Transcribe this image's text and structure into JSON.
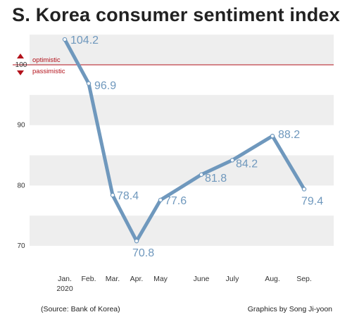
{
  "chart_data": {
    "type": "line",
    "title": "S. Korea consumer sentiment index",
    "categories": [
      "Jan.\n2020",
      "Feb.",
      "Mar.",
      "Apr.",
      "May",
      "June",
      "July",
      "Aug.",
      "Sep."
    ],
    "values": [
      104.2,
      96.9,
      78.4,
      70.8,
      77.6,
      81.8,
      84.2,
      88.2,
      79.4
    ],
    "data_labels": [
      "104.2",
      "96.9",
      "78.4",
      "70.8",
      "77.6",
      "81.8",
      "84.2",
      "88.2",
      "79.4"
    ],
    "yticks": [
      70,
      80,
      90,
      100
    ],
    "ylim": [
      66,
      106
    ],
    "grid": "horizontal alternating bands",
    "reference_line": {
      "value": 100,
      "label_above": "optimistic",
      "label_below": "passimistic"
    },
    "source": "(Source: Bank of Korea)",
    "credit": "Graphics by Song Ji-yoon",
    "colors": {
      "line": "#6f98bd",
      "reference": "#b3121b",
      "band": "#eeeeee"
    }
  }
}
